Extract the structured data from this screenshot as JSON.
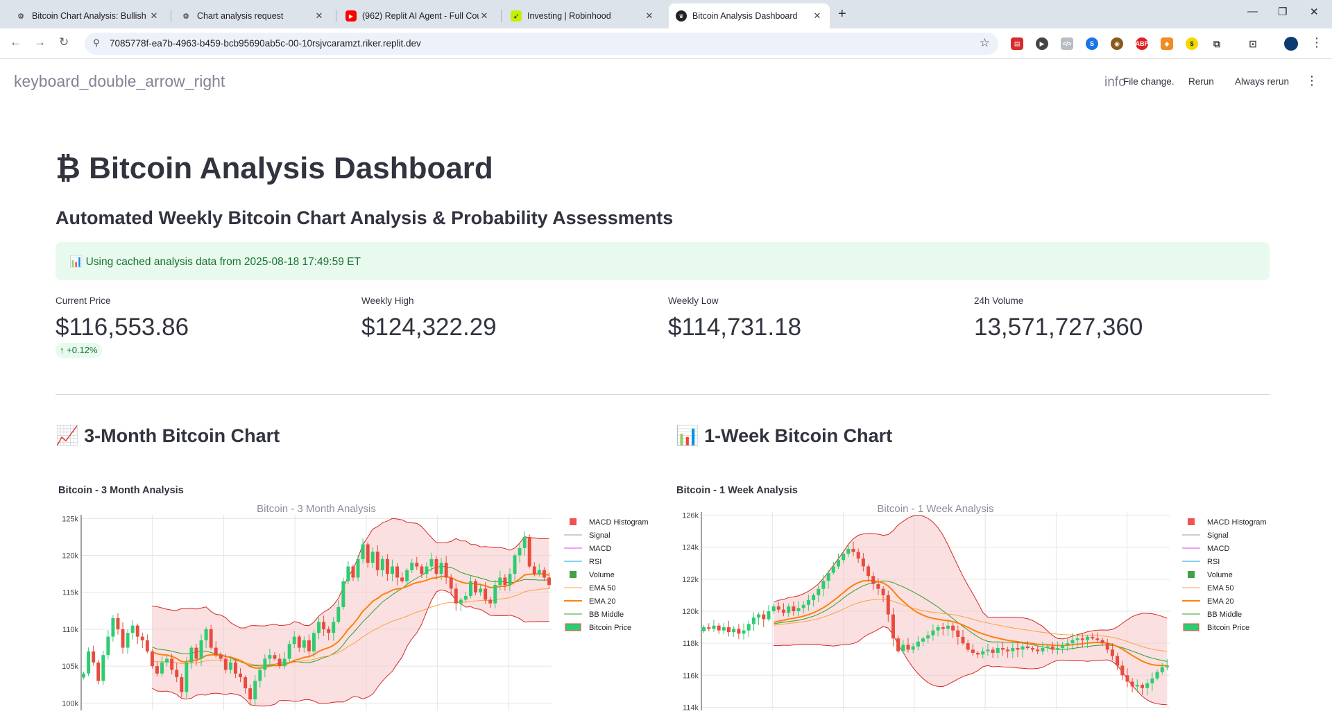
{
  "browser": {
    "tabs": [
      {
        "title": "Bitcoin Chart Analysis: Bullish o",
        "icon": "openai-icon"
      },
      {
        "title": "Chart analysis request",
        "icon": "openai-icon"
      },
      {
        "title": "(962) Replit AI Agent - Full Cou",
        "icon": "youtube-icon"
      },
      {
        "title": "Investing | Robinhood",
        "icon": "robinhood-icon"
      },
      {
        "title": "Bitcoin Analysis Dashboard",
        "icon": "streamlit-icon"
      }
    ],
    "active_tab": 4,
    "url": "7085778f-ea7b-4963-b459-bcb95690ab5c-00-10rsjvcaramzt.riker.replit.dev"
  },
  "header": {
    "sidebar_toggle": "keyboard_double_arrow_right",
    "info_icon": "info",
    "file_change": "File change.",
    "rerun": "Rerun",
    "always_rerun": "Always rerun"
  },
  "main": {
    "title": "₿ Bitcoin Analysis Dashboard",
    "subtitle": "Automated Weekly Bitcoin Chart Analysis & Probability Assessments",
    "alert": "📊 Using cached analysis data from 2025-08-18 17:49:59 ET",
    "metrics": [
      {
        "label": "Current Price",
        "value": "$116,553.86"
      },
      {
        "label": "Weekly High",
        "value": "$124,322.29"
      },
      {
        "label": "Weekly Low",
        "value": "$114,731.18"
      },
      {
        "label": "24h Volume",
        "value": "13,571,727,360"
      }
    ],
    "price_delta": "↑ +0.12%",
    "section_3m": "📈 3-Month Bitcoin Chart",
    "section_1w": "📊 1-Week Bitcoin Chart",
    "caption_3m": "Bitcoin - 3 Month Analysis",
    "caption_1w": "Bitcoin - 1 Week Analysis"
  },
  "colors": {
    "up": "#2ecc71",
    "down": "#e74c3c",
    "ema20": "#ff7f0e",
    "ema50": "#ffa040",
    "bb_mid": "#2ca02c",
    "bb_band": "#d62728",
    "bb_fill": "#f6c6c6"
  },
  "chart_data": [
    {
      "type": "candlestick",
      "title": "Bitcoin - 3 Month Analysis",
      "y_ticks": [
        "100k",
        "105k",
        "110k",
        "115k",
        "120k",
        "125k"
      ],
      "ylim": [
        99000,
        125500
      ],
      "legend": [
        "MACD Histogram",
        "Signal",
        "MACD",
        "RSI",
        "Volume",
        "EMA 50",
        "EMA 20",
        "BB Middle",
        "Bitcoin Price"
      ],
      "legend_position": "right",
      "close": [
        104000,
        107000,
        105500,
        103000,
        106500,
        109000,
        111500,
        110000,
        107500,
        109500,
        110500,
        109000,
        108500,
        107000,
        105000,
        104000,
        105500,
        106000,
        104500,
        103500,
        101500,
        105500,
        107500,
        106000,
        108500,
        110000,
        107500,
        106500,
        106000,
        104500,
        105500,
        104000,
        103500,
        102000,
        100500,
        103000,
        104500,
        106000,
        106500,
        106000,
        105000,
        106000,
        108000,
        109000,
        107500,
        108500,
        107000,
        109500,
        111000,
        110000,
        109500,
        111000,
        113000,
        116500,
        118500,
        117000,
        119500,
        121500,
        119000,
        120500,
        118000,
        119500,
        117500,
        118500,
        117000,
        116500,
        118000,
        119000,
        118500,
        117500,
        118500,
        119500,
        117500,
        119000,
        117000,
        115500,
        113500,
        114000,
        114500,
        116500,
        115000,
        115500,
        114000,
        113500,
        116000,
        117000,
        116000,
        117500,
        120000,
        121000,
        122500,
        118500,
        117500,
        118000,
        117000,
        116000
      ]
    },
    {
      "type": "candlestick",
      "title": "Bitcoin - 1 Week Analysis",
      "y_ticks": [
        "114k",
        "116k",
        "118k",
        "120k",
        "122k",
        "124k",
        "126k"
      ],
      "ylim": [
        113800,
        126200
      ],
      "legend": [
        "MACD Histogram",
        "Signal",
        "MACD",
        "RSI",
        "Volume",
        "EMA 50",
        "EMA 20",
        "BB Middle",
        "Bitcoin Price"
      ],
      "legend_position": "right",
      "close": [
        119000,
        118900,
        119100,
        118800,
        119000,
        118700,
        118900,
        118600,
        118800,
        119200,
        119600,
        119800,
        119500,
        120000,
        120300,
        120100,
        119900,
        120300,
        120000,
        120200,
        120400,
        120700,
        121000,
        121400,
        121900,
        122400,
        122800,
        123200,
        123600,
        123900,
        123700,
        123300,
        122800,
        122200,
        121700,
        121400,
        121000,
        119800,
        118300,
        117500,
        117900,
        117600,
        117800,
        118100,
        118300,
        118500,
        118800,
        119000,
        118900,
        119100,
        118800,
        118400,
        118000,
        117600,
        117400,
        117300,
        117500,
        117600,
        117400,
        117700,
        117600,
        117500,
        117700,
        117600,
        117800,
        117700,
        117600,
        117500,
        117700,
        117800,
        117600,
        117700,
        117900,
        118000,
        118200,
        118300,
        118200,
        118400,
        118300,
        118200,
        118000,
        117600,
        117200,
        116600,
        116000,
        115600,
        115300,
        115400,
        115200,
        115500,
        115800,
        116200,
        116500,
        116600
      ]
    }
  ]
}
